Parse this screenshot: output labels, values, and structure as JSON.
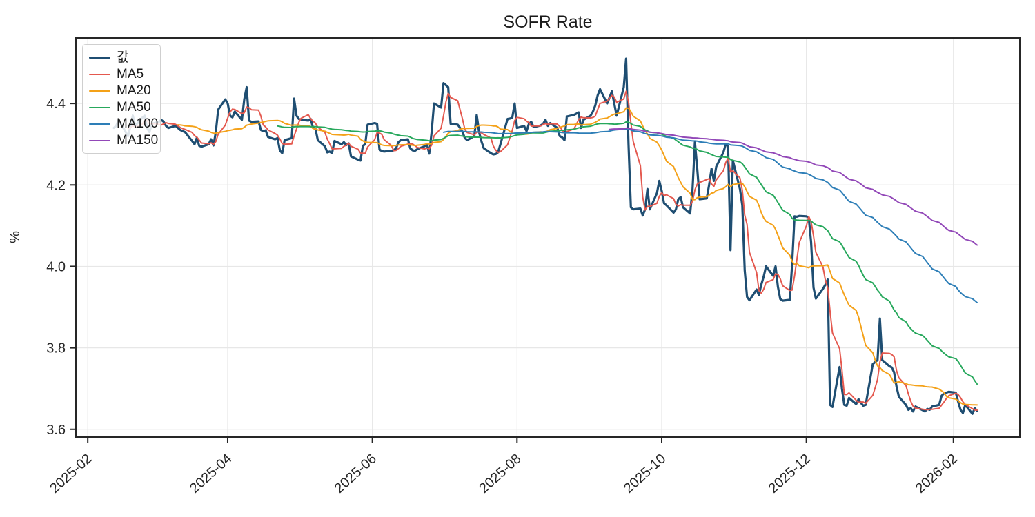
{
  "title": "SOFR Rate",
  "axes": {
    "ylabel": "%",
    "x_tick_labels": [
      "2025-02",
      "2025-04",
      "2025-06",
      "2025-08",
      "2025-10",
      "2025-12",
      "2026-02"
    ],
    "y_tick_labels": [
      "3.6",
      "3.8",
      "4.0",
      "4.2",
      "4.4"
    ]
  },
  "chart_data": {
    "type": "line",
    "title": "SOFR Rate",
    "xlabel": "",
    "ylabel": "%",
    "frequency": "business-day",
    "start_date": "2025-02-12",
    "end_date": "2026-02-11",
    "series": {
      "name": "값",
      "color": "#1f4e72",
      "line_width": 3.2
    },
    "overlays": [
      {
        "name": "MA5",
        "window": 5,
        "color": "#e4584e",
        "line_width": 2
      },
      {
        "name": "MA20",
        "window": 20,
        "color": "#f4a118",
        "line_width": 2
      },
      {
        "name": "MA50",
        "window": 50,
        "color": "#27a85c",
        "line_width": 2
      },
      {
        "name": "MA100",
        "window": 100,
        "color": "#2d7eb7",
        "line_width": 2
      },
      {
        "name": "MA150",
        "window": 150,
        "color": "#9248b8",
        "line_width": 2
      }
    ],
    "values": [
      4.34,
      4.345,
      4.36,
      4.33,
      4.32,
      4.345,
      4.37,
      4.345,
      4.365,
      4.37,
      4.34,
      4.33,
      4.35,
      4.355,
      4.36,
      4.355,
      4.345,
      4.34,
      4.345,
      4.34,
      4.335,
      4.332,
      4.33,
      4.308,
      4.3,
      4.316,
      4.296,
      4.294,
      4.3,
      4.312,
      4.297,
      4.33,
      4.385,
      4.41,
      4.4,
      4.37,
      4.366,
      4.38,
      4.36,
      4.41,
      4.44,
      4.358,
      4.355,
      4.356,
      4.335,
      4.332,
      4.334,
      4.318,
      4.312,
      4.315,
      4.285,
      4.278,
      4.31,
      4.315,
      4.412,
      4.37,
      4.362,
      4.36,
      4.358,
      4.362,
      4.34,
      4.338,
      4.31,
      4.295,
      4.28,
      4.282,
      4.278,
      4.308,
      4.3,
      4.305,
      4.298,
      4.302,
      4.27,
      4.262,
      4.26,
      4.296,
      4.3,
      4.348,
      4.352,
      4.35,
      4.287,
      4.283,
      4.282,
      4.284,
      4.285,
      4.29,
      4.305,
      4.31,
      4.312,
      4.29,
      4.285,
      4.284,
      4.288,
      4.295,
      4.3,
      4.277,
      4.33,
      4.4,
      4.39,
      4.45,
      4.445,
      4.44,
      4.35,
      4.348,
      4.34,
      4.33,
      4.315,
      4.31,
      4.32,
      4.372,
      4.33,
      4.307,
      4.29,
      4.278,
      4.275,
      4.276,
      4.28,
      4.3,
      4.362,
      4.363,
      4.365,
      4.4,
      4.34,
      4.345,
      4.332,
      4.35,
      4.355,
      4.342,
      4.346,
      4.35,
      4.36,
      4.345,
      4.352,
      4.34,
      4.32,
      4.317,
      4.31,
      4.368,
      4.372,
      4.375,
      4.378,
      4.34,
      4.36,
      4.37,
      4.38,
      4.395,
      4.42,
      4.435,
      4.4,
      4.415,
      4.43,
      4.4,
      4.37,
      4.44,
      4.51,
      4.3,
      4.145,
      4.14,
      4.142,
      4.125,
      4.14,
      4.19,
      4.14,
      4.18,
      4.21,
      4.185,
      4.155,
      4.15,
      4.132,
      4.14,
      4.165,
      4.17,
      4.145,
      4.13,
      4.19,
      4.305,
      4.24,
      4.165,
      4.167,
      4.2,
      4.24,
      4.21,
      4.245,
      4.28,
      4.3,
      4.295,
      4.04,
      4.26,
      4.19,
      4.15,
      3.99,
      3.925,
      3.917,
      3.943,
      3.93,
      3.955,
      3.975,
      4.0,
      3.977,
      4.0,
      3.95,
      3.92,
      3.916,
      3.918,
      4.005,
      4.123,
      4.122,
      4.124,
      4.123,
      4.12,
      4.06,
      3.948,
      3.921,
      3.945,
      3.955,
      3.968,
      3.66,
      3.655,
      3.753,
      3.7,
      3.66,
      3.658,
      3.677,
      3.662,
      3.674,
      3.665,
      3.658,
      3.66,
      3.76,
      3.765,
      3.77,
      3.872,
      3.77,
      3.755,
      3.752,
      3.74,
      3.705,
      3.68,
      3.66,
      3.648,
      3.652,
      3.644,
      3.656,
      3.647,
      3.644,
      3.65,
      3.648,
      3.656,
      3.66,
      3.682,
      3.688,
      3.69,
      3.692,
      3.69,
      3.668,
      3.648,
      3.64,
      3.66,
      3.638,
      3.652,
      3.645
    ],
    "x_ticks": [
      {
        "label": "2025-02",
        "date": "2025-02-01"
      },
      {
        "label": "2025-04",
        "date": "2025-04-01"
      },
      {
        "label": "2025-06",
        "date": "2025-06-01"
      },
      {
        "label": "2025-08",
        "date": "2025-08-01"
      },
      {
        "label": "2025-10",
        "date": "2025-10-01"
      },
      {
        "label": "2025-12",
        "date": "2025-12-01"
      },
      {
        "label": "2026-02",
        "date": "2026-02-01"
      }
    ],
    "y_ticks": [
      3.6,
      3.8,
      4.0,
      4.2,
      4.4
    ],
    "xlim": [
      "2025-01-27",
      "2026-03-01"
    ],
    "ylim": [
      3.581,
      4.561
    ],
    "grid": true,
    "grid_color": "#e7e7e7",
    "spine_color": "#262626",
    "legend_position": "upper left"
  }
}
